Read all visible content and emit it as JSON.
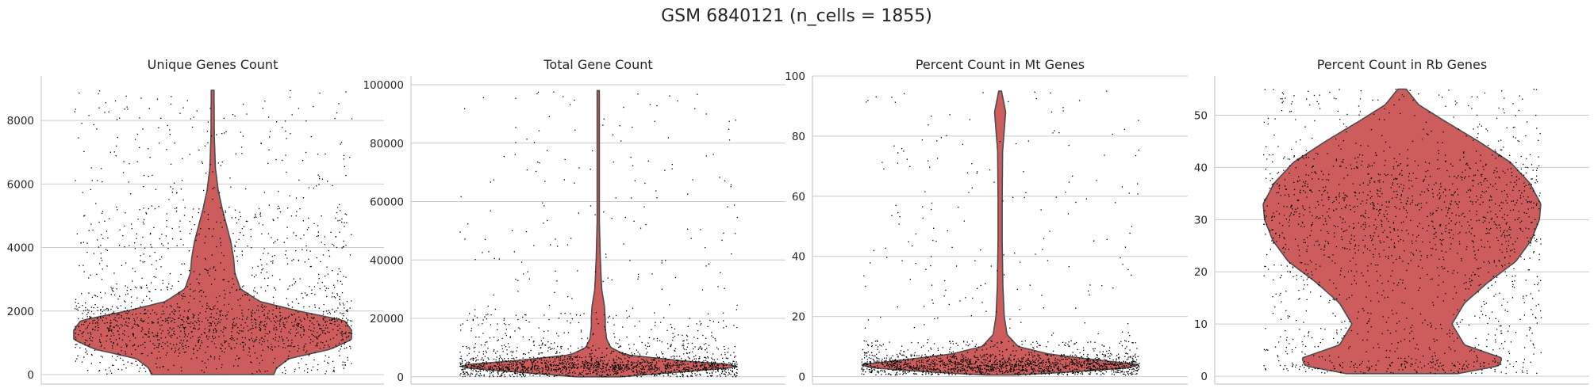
{
  "suptitle": "GSM 6840121 (n_cells = 1855)",
  "colors": {
    "violin_fill": "#cd5c5c",
    "violin_edge": "#4d4d4d",
    "points": "#000000",
    "grid": "#cccccc",
    "spine": "#cccccc",
    "text": "#262626"
  },
  "chart_data": [
    {
      "type": "violin",
      "title": "Unique Genes Count",
      "xlabel": "",
      "ylabel": "",
      "ylim": [
        -300,
        9400
      ],
      "yticks": [
        0,
        2000,
        4000,
        6000,
        8000
      ],
      "ytick_labels": [
        "0",
        "2000",
        "4000",
        "6000",
        "8000"
      ],
      "grid": "y",
      "n_points": 1855,
      "data_range": [
        0,
        8950
      ],
      "density_profile": [
        [
          0,
          0.44
        ],
        [
          200,
          0.46
        ],
        [
          500,
          0.55
        ],
        [
          800,
          0.85
        ],
        [
          1100,
          1.0
        ],
        [
          1400,
          1.0
        ],
        [
          1700,
          0.95
        ],
        [
          2000,
          0.62
        ],
        [
          2300,
          0.34
        ],
        [
          2700,
          0.2
        ],
        [
          3200,
          0.16
        ],
        [
          3700,
          0.15
        ],
        [
          4200,
          0.13
        ],
        [
          4700,
          0.1
        ],
        [
          5200,
          0.07
        ],
        [
          5800,
          0.04
        ],
        [
          6500,
          0.02
        ],
        [
          7500,
          0.012
        ],
        [
          8950,
          0.01
        ]
      ],
      "points_quantiles": [
        0,
        800,
        1150,
        1400,
        1600,
        1800,
        2150,
        2800,
        4000,
        5300,
        8950
      ]
    },
    {
      "type": "violin",
      "title": "Total Gene Count",
      "xlabel": "",
      "ylabel": "",
      "ylim": [
        -2500,
        103000
      ],
      "yticks": [
        0,
        20000,
        40000,
        60000,
        80000,
        100000
      ],
      "ytick_labels": [
        "0",
        "20000",
        "40000",
        "60000",
        "80000",
        "100000"
      ],
      "grid": "y",
      "n_points": 1855,
      "data_range": [
        0,
        98000
      ],
      "density_profile": [
        [
          0,
          0.16
        ],
        [
          1500,
          0.55
        ],
        [
          3000,
          0.95
        ],
        [
          4000,
          1.0
        ],
        [
          5500,
          0.6
        ],
        [
          7500,
          0.2
        ],
        [
          10000,
          0.09
        ],
        [
          13000,
          0.06
        ],
        [
          17000,
          0.05
        ],
        [
          20000,
          0.05
        ],
        [
          24000,
          0.045
        ],
        [
          30000,
          0.025
        ],
        [
          40000,
          0.015
        ],
        [
          55000,
          0.007
        ],
        [
          98000,
          0.004
        ]
      ],
      "points_quantiles": [
        0,
        1200,
        2300,
        3000,
        3600,
        4300,
        5200,
        6800,
        11000,
        22000,
        98000
      ]
    },
    {
      "type": "violin",
      "title": "Percent Count in Mt Genes",
      "xlabel": "",
      "ylabel": "",
      "ylim": [
        -2.5,
        100
      ],
      "yticks": [
        0,
        20,
        40,
        60,
        80,
        100
      ],
      "ytick_labels": [
        "0",
        "20",
        "40",
        "60",
        "80",
        "100"
      ],
      "grid": "y",
      "n_points": 1855,
      "data_range": [
        0.5,
        95
      ],
      "density_profile": [
        [
          0.5,
          0.1
        ],
        [
          1.5,
          0.5
        ],
        [
          3,
          0.95
        ],
        [
          4,
          1.0
        ],
        [
          5.5,
          0.7
        ],
        [
          7.5,
          0.35
        ],
        [
          10,
          0.13
        ],
        [
          14,
          0.05
        ],
        [
          20,
          0.03
        ],
        [
          30,
          0.02
        ],
        [
          45,
          0.015
        ],
        [
          60,
          0.015
        ],
        [
          75,
          0.018
        ],
        [
          88,
          0.04
        ],
        [
          95,
          0.01
        ]
      ],
      "points_quantiles": [
        0.5,
        1.5,
        2.3,
        3.0,
        3.6,
        4.2,
        4.9,
        5.8,
        7.5,
        12.0,
        95
      ]
    },
    {
      "type": "violin",
      "title": "Percent Count in Rb Genes",
      "xlabel": "",
      "ylabel": "",
      "ylim": [
        -1.5,
        57.5
      ],
      "yticks": [
        0,
        10,
        20,
        30,
        40,
        50
      ],
      "ytick_labels": [
        "0",
        "10",
        "20",
        "30",
        "40",
        "50"
      ],
      "grid": "y",
      "n_points": 1855,
      "data_range": [
        0.5,
        55
      ],
      "density_profile": [
        [
          0.5,
          0.4
        ],
        [
          2,
          0.7
        ],
        [
          3.5,
          0.72
        ],
        [
          6,
          0.45
        ],
        [
          10,
          0.36
        ],
        [
          14,
          0.45
        ],
        [
          18,
          0.62
        ],
        [
          22,
          0.82
        ],
        [
          26,
          0.93
        ],
        [
          30,
          0.99
        ],
        [
          33,
          1.0
        ],
        [
          37,
          0.92
        ],
        [
          41,
          0.78
        ],
        [
          45,
          0.55
        ],
        [
          49,
          0.3
        ],
        [
          52,
          0.12
        ],
        [
          55,
          0.03
        ]
      ],
      "points_quantiles": [
        0.5,
        3.0,
        9.0,
        18.0,
        24.0,
        28.0,
        31.5,
        34.5,
        38.0,
        42.5,
        55
      ]
    }
  ]
}
